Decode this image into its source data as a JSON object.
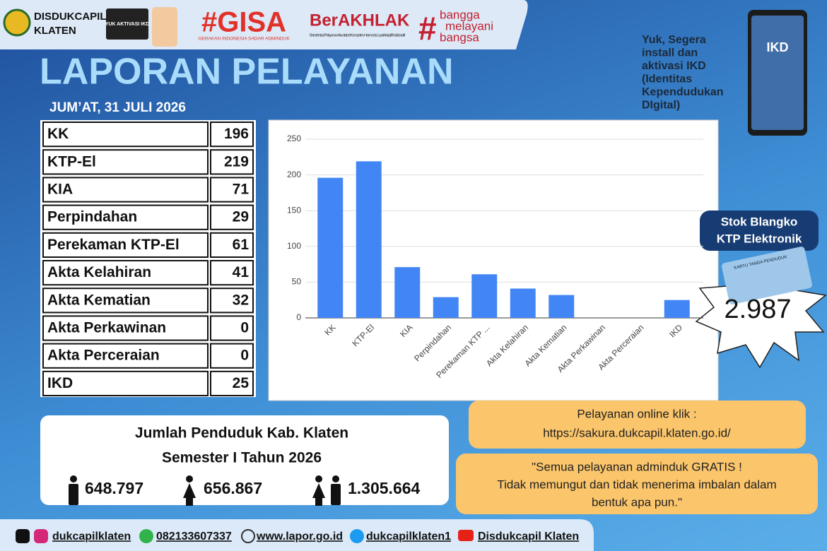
{
  "header": {
    "org_name": "DISDUKCAPIL",
    "org_region": "KLATEN",
    "ikd_badge": "YUK AKTIVASI IKD",
    "gisa": "#GISA",
    "gisa_sub": "GERAKAN INDONESIA SADAR ADMINDUK",
    "berakhlak": "BerAKHLAK",
    "berakhlak_sub": "Berorientasi Pelayanan Akuntabel Kompeten Harmonis Loyal Adaptif Kolaboratif",
    "bangga": [
      "bangga",
      "melayani",
      "bangsa"
    ]
  },
  "title": "LAPORAN PELAYANAN",
  "date": "JUM’AT, 31 JULI 2026",
  "table": {
    "labels": [
      "KK",
      "KTP-El",
      "KIA",
      "Perpindahan",
      "Perekaman KTP-El",
      "Akta Kelahiran",
      "Akta Kematian",
      "Akta Perkawinan",
      "Akta Perceraian",
      "IKD"
    ]
  },
  "chart_data": {
    "type": "bar",
    "categories": [
      "KK",
      "KTP-El",
      "KIA",
      "Perpindahan",
      "Perekaman KTP ...",
      "Akta Kelahiran",
      "Akta Kematian",
      "Akta Perkawinan",
      "Akta Perceraian",
      "IKD"
    ],
    "values": [
      196,
      219,
      71,
      29,
      61,
      41,
      32,
      0,
      0,
      25
    ],
    "color": "#4285f4",
    "ylim": [
      0,
      250
    ],
    "yticks": [
      0,
      50,
      100,
      150,
      200,
      250
    ],
    "grid": true
  },
  "ikd_promo": {
    "lines": [
      "Yuk, Segera",
      "install dan",
      "aktivasi IKD",
      "(Identitas",
      "Kependudukan",
      "DIgital)"
    ],
    "phone_text": "IKD"
  },
  "stock": {
    "title": [
      "Stok Blangko",
      "KTP Elektronik"
    ],
    "card_text": "KARTU TANDA PENDUDUK",
    "value": "2.987"
  },
  "population": {
    "title": [
      "Jumlah Penduduk Kab. Klaten",
      "Semester I Tahun 2026"
    ],
    "male": "648.797",
    "female": "656.867",
    "total": "1.305.664"
  },
  "online": {
    "label": "Pelayanan online klik :",
    "url": "https://sakura.dukcapil.klaten.go.id/"
  },
  "notice": [
    "\"Semua pelayanan adminduk GRATIS !",
    "Tidak memungut dan tidak menerima imbalan dalam",
    "bentuk apa pun.\""
  ],
  "footer": {
    "instagram": "dukcapilklaten",
    "whatsapp": "082133607337",
    "web": "www.lapor.go.id",
    "twitter": "dukcapilklaten1",
    "youtube": "Disdukcapil Klaten"
  }
}
